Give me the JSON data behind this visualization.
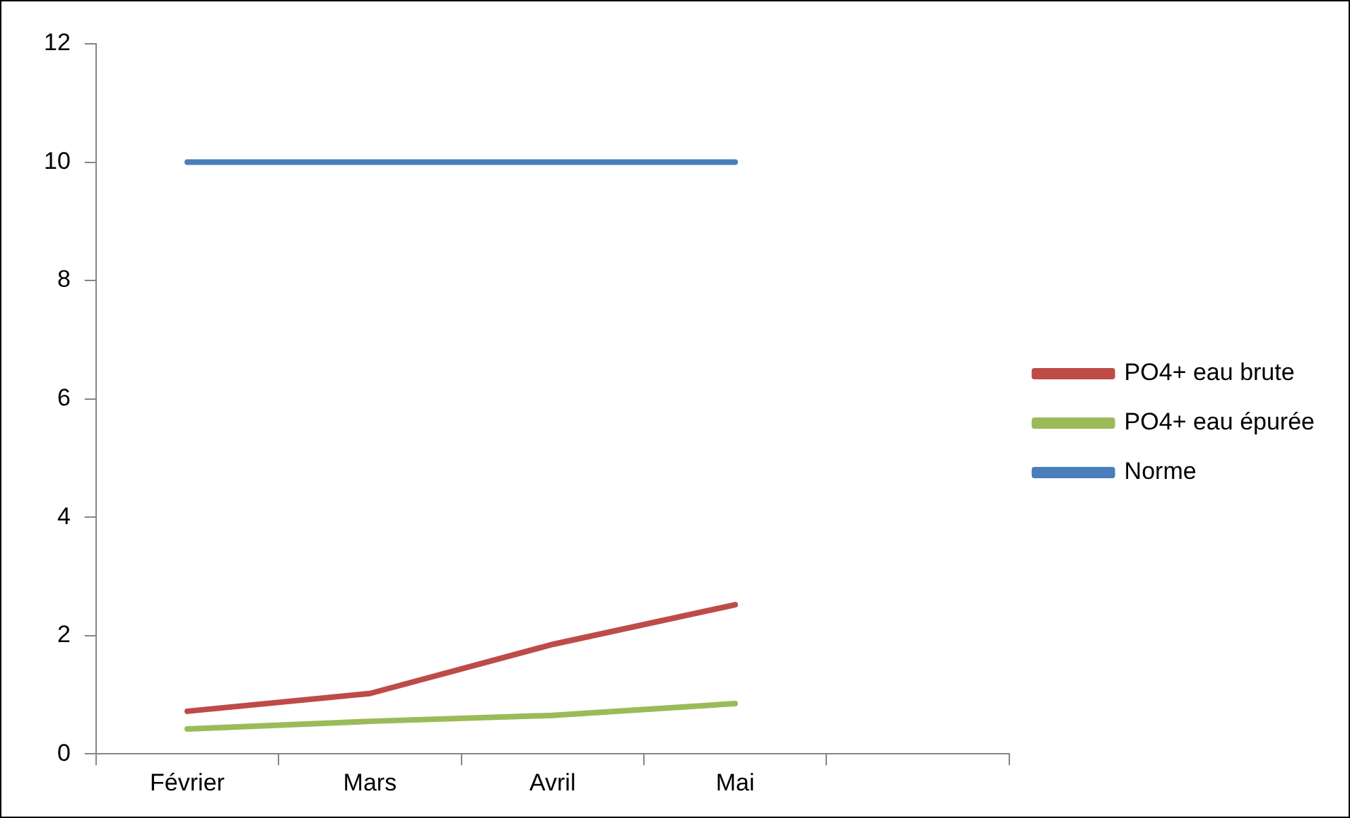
{
  "chart_data": {
    "type": "line",
    "categories": [
      "Février",
      "Mars",
      "Avril",
      "Mai",
      null
    ],
    "series": [
      {
        "name": "PO4+ eau brute",
        "color": "#be4b48",
        "values": [
          0.72,
          1.02,
          1.85,
          2.52,
          null
        ]
      },
      {
        "name": "PO4+ eau épurée",
        "color": "#9bbb59",
        "values": [
          0.42,
          0.55,
          0.65,
          0.85,
          null
        ]
      },
      {
        "name": "Norme",
        "color": "#4a7ebb",
        "values": [
          10,
          10,
          10,
          10,
          null
        ]
      }
    ],
    "ylim": [
      0,
      12
    ],
    "yticks": [
      0,
      2,
      4,
      6,
      8,
      10,
      12
    ],
    "grid": false,
    "legend": "right",
    "marker": "none",
    "line_style": "solid"
  }
}
